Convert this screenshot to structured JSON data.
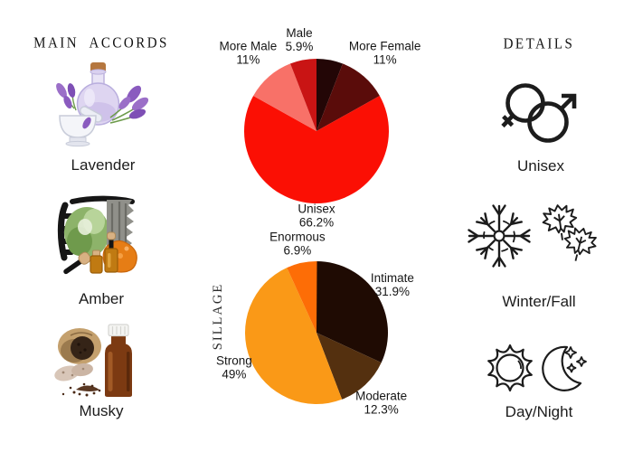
{
  "styles": {
    "background": "#ffffff",
    "icon_color": "#1c1c1c",
    "text_color": "#1a1a1a"
  },
  "left_panel": {
    "heading": "MAIN ACCORDS",
    "accords": [
      {
        "name": "Lavender",
        "image": "lavender-illustration"
      },
      {
        "name": "Amber",
        "image": "amber-illustration"
      },
      {
        "name": "Musky",
        "image": "musky-illustration"
      }
    ]
  },
  "right_panel": {
    "heading": "DETAILS",
    "details": [
      {
        "label": "Unisex",
        "icons": [
          "female-male-combined-icon"
        ]
      },
      {
        "label": "Winter/Fall",
        "icons": [
          "snowflake-icon",
          "maple-leaf-icon",
          "maple-leaf-icon"
        ]
      },
      {
        "label": "Day/Night",
        "icons": [
          "sun-icon",
          "moon-stars-icon"
        ]
      }
    ]
  },
  "chart_data": [
    {
      "type": "pie",
      "name": "gender-split",
      "title": "",
      "direction": "clockwise",
      "start_angle_deg": 90,
      "labels_position": "outside",
      "slices": [
        {
          "label": "",
          "value": 5.9,
          "pct_text": "",
          "color": "#230606",
          "label_visible": false
        },
        {
          "label": "More Female",
          "value": 11,
          "pct_text": "11%",
          "color": "#5a0c0a",
          "label_visible": true,
          "labeldistance": 1.44
        },
        {
          "label": "Unisex",
          "value": 66.2,
          "pct_text": "66.2%",
          "color": "#fb0f04",
          "label_visible": true,
          "labeldistance": 1.16
        },
        {
          "label": "More Male",
          "value": 11,
          "pct_text": "11%",
          "color": "#f87168",
          "label_visible": true,
          "labeldistance": 1.44
        },
        {
          "label": "Male",
          "value": 5.9,
          "pct_text": "5.9%",
          "color": "#c91414",
          "label_visible": true
        }
      ]
    },
    {
      "type": "pie",
      "name": "sillage",
      "ylabel": "SILLAGE",
      "direction": "clockwise",
      "start_angle_deg": 90,
      "labels_position": "outside",
      "slices": [
        {
          "label": "Intimate",
          "value": 31.9,
          "pct_text": "31.9%",
          "color": "#1f0b03",
          "label_visible": true
        },
        {
          "label": "Moderate",
          "value": 12.3,
          "pct_text": "12.3%",
          "color": "#54300f",
          "label_visible": true,
          "labeldistance": 1.33
        },
        {
          "label": "Strong",
          "value": 49,
          "pct_text": "49%",
          "color": "#fa9917",
          "label_visible": true,
          "labeldistance": 1.25
        },
        {
          "label": "Enormous",
          "value": 6.9,
          "pct_text": "6.9%",
          "color": "#fd6d06",
          "label_visible": true,
          "labeldistance": 1.28
        }
      ]
    }
  ]
}
